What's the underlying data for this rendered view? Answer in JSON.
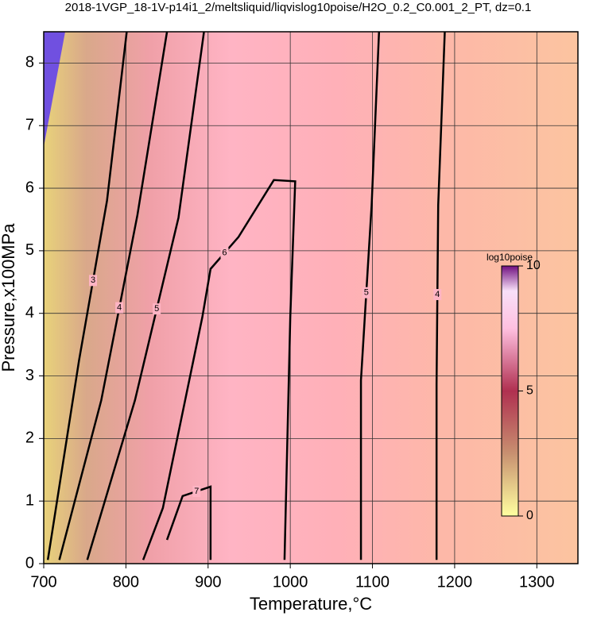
{
  "chart_data": {
    "type": "contour",
    "title": "2018-1VGP_18-1V-p14i1_2/meltsliquid/liqvislog10poise/H2O_0.2_C0.001_2_PT, dz=0.1",
    "x_label": "Temperature,°C",
    "y_label": "Pressure,x100MPa",
    "xlim": [
      700,
      1350
    ],
    "ylim": [
      0,
      8.5
    ],
    "xticks": [
      700,
      800,
      900,
      1000,
      1100,
      1200,
      1300
    ],
    "yticks": [
      0,
      1,
      2,
      3,
      4,
      5,
      6,
      7,
      8
    ],
    "grid": true,
    "colorbar": {
      "label": "log10poise",
      "lim": [
        0,
        10
      ],
      "ticks": [
        0,
        5,
        10
      ]
    },
    "contours": [
      {
        "level": 3,
        "x": [
          801,
          777,
          743,
          705
        ],
        "y": [
          8.5,
          5.8,
          3.25,
          0.06
        ]
      },
      {
        "level": 4,
        "x": [
          850,
          814,
          770,
          719
        ],
        "y": [
          8.5,
          5.57,
          2.61,
          0.06
        ]
      },
      {
        "level": 5,
        "x": [
          895,
          864,
          811,
          753
        ],
        "y": [
          8.5,
          5.53,
          2.61,
          0.06
        ]
      },
      {
        "level": 6,
        "x": [
          993,
          1000,
          1006,
          980,
          937,
          903,
          893,
          873,
          845,
          821
        ],
        "y": [
          0.06,
          3.94,
          6.11,
          6.13,
          5.22,
          4.71,
          3.94,
          2.67,
          0.89,
          0.06
        ]
      },
      {
        "level": 7,
        "x": [
          903,
          903,
          869,
          850
        ],
        "y": [
          0.06,
          1.23,
          1.08,
          0.38
        ]
      },
      {
        "level": 5,
        "x": [
          1108,
          1099,
          1086,
          1086
        ],
        "y": [
          8.5,
          5.73,
          2.93,
          0.06
        ]
      },
      {
        "level": 4,
        "x": [
          1188,
          1180,
          1178,
          1178
        ],
        "y": [
          8.5,
          5.73,
          2.87,
          0.06
        ]
      }
    ]
  }
}
